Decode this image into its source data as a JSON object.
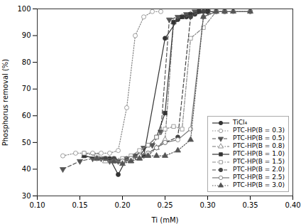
{
  "chart_data": {
    "type": "line",
    "xlabel": "Ti (mM)",
    "ylabel": "Phosphorus removal (%)",
    "xlim": [
      0.1,
      0.4
    ],
    "ylim": [
      30,
      100
    ],
    "xticks": [
      {
        "value": 0.1,
        "label": "0.10"
      },
      0.15,
      {
        "value": 0.2,
        "label": "0.20"
      },
      0.25,
      {
        "value": 0.3,
        "label": "0.30"
      },
      0.35,
      {
        "value": 0.4,
        "label": "0.40"
      }
    ],
    "yticks": [
      30,
      40,
      50,
      60,
      70,
      80,
      90,
      100
    ],
    "grid": false,
    "legend": "lower right",
    "series": [
      {
        "name": "TiCl₄",
        "color": "#333333",
        "marker": "circle",
        "line_style": "solid",
        "x": [
          0.185,
          0.195,
          0.205,
          0.215,
          0.225,
          0.25,
          0.265,
          0.275,
          0.285,
          0.3,
          0.35
        ],
        "values": [
          44,
          38,
          44,
          45,
          45,
          89,
          96,
          97,
          98,
          99,
          99
        ]
      },
      {
        "name": "PTC-HP(B = 0.3)",
        "color": "#888888",
        "marker": "circle-open",
        "line_style": "dotted",
        "x": [
          0.13,
          0.145,
          0.155,
          0.165,
          0.175,
          0.185,
          0.195,
          0.205,
          0.215,
          0.225,
          0.235,
          0.245
        ],
        "values": [
          45,
          46,
          46,
          46,
          46,
          46,
          47,
          63,
          90,
          97,
          99,
          99
        ]
      },
      {
        "name": "PTC-HP(B = 0.5)",
        "color": "#555555",
        "marker": "triangle-down",
        "line_style": "dashed",
        "x": [
          0.13,
          0.15,
          0.165,
          0.175,
          0.185,
          0.195,
          0.205,
          0.215,
          0.225,
          0.235,
          0.245,
          0.255,
          0.265,
          0.275,
          0.285,
          0.3
        ],
        "values": [
          40,
          43,
          44,
          44,
          43,
          43,
          44,
          45,
          48,
          49,
          54,
          96,
          97,
          98,
          99,
          99
        ]
      },
      {
        "name": "PTC-HP(B = 0.8)",
        "color": "#777777",
        "marker": "triangle-open",
        "line_style": "dashdot",
        "x": [
          0.155,
          0.17,
          0.18,
          0.19,
          0.2,
          0.21,
          0.22,
          0.23,
          0.24,
          0.25,
          0.26,
          0.27,
          0.28,
          0.29,
          0.3
        ],
        "values": [
          45,
          44,
          43,
          43,
          43,
          43,
          44,
          45,
          48,
          51,
          95,
          97,
          98,
          99,
          99
        ]
      },
      {
        "name": "PTC-HP(B = 1.0)",
        "color": "#333333",
        "marker": "square",
        "line_style": "solid",
        "x": [
          0.155,
          0.17,
          0.18,
          0.19,
          0.2,
          0.21,
          0.22,
          0.23,
          0.24,
          0.25,
          0.26,
          0.27,
          0.28,
          0.29,
          0.3
        ],
        "values": [
          45,
          44,
          44,
          43,
          43,
          44,
          45,
          49,
          52,
          61,
          95,
          97,
          98,
          99,
          99
        ]
      },
      {
        "name": "PTC-HP(B = 1.5)",
        "color": "#888888",
        "marker": "square-open",
        "line_style": "dashdot",
        "x": [
          0.155,
          0.17,
          0.18,
          0.19,
          0.2,
          0.21,
          0.22,
          0.23,
          0.24,
          0.25,
          0.26,
          0.27,
          0.28,
          0.295,
          0.31,
          0.32
        ],
        "values": [
          46,
          45,
          44,
          44,
          44,
          45,
          47,
          49,
          52,
          55,
          56,
          55,
          89,
          93,
          99,
          99
        ]
      },
      {
        "name": "PTC-HP(B = 2.0)",
        "color": "#444444",
        "marker": "circle",
        "line_style": "dashed",
        "x": [
          0.17,
          0.18,
          0.19,
          0.2,
          0.21,
          0.22,
          0.23,
          0.24,
          0.25,
          0.265,
          0.28,
          0.295,
          0.31,
          0.32
        ],
        "values": [
          44,
          44,
          44,
          43,
          44,
          45,
          46,
          48,
          50,
          52,
          97,
          99,
          99,
          99
        ]
      },
      {
        "name": "PTC-HP(B = 2.5)",
        "color": "#777777",
        "marker": "circle-open",
        "line_style": "solid",
        "x": [
          0.17,
          0.19,
          0.2,
          0.21,
          0.22,
          0.23,
          0.24,
          0.25,
          0.265,
          0.28,
          0.295,
          0.31,
          0.32,
          0.33,
          0.35
        ],
        "values": [
          44,
          43,
          43,
          44,
          45,
          46,
          48,
          50,
          51,
          55,
          97,
          99,
          99,
          99,
          99
        ]
      },
      {
        "name": "PTC-HP(B = 3.0)",
        "color": "#555555",
        "marker": "triangle",
        "line_style": "dotted",
        "x": [
          0.17,
          0.19,
          0.2,
          0.21,
          0.22,
          0.23,
          0.24,
          0.25,
          0.265,
          0.28,
          0.295,
          0.31,
          0.32,
          0.33,
          0.35
        ],
        "values": [
          44,
          43,
          42,
          43,
          44,
          45,
          45,
          45,
          47,
          51,
          97,
          99,
          99,
          99,
          99
        ]
      }
    ]
  }
}
